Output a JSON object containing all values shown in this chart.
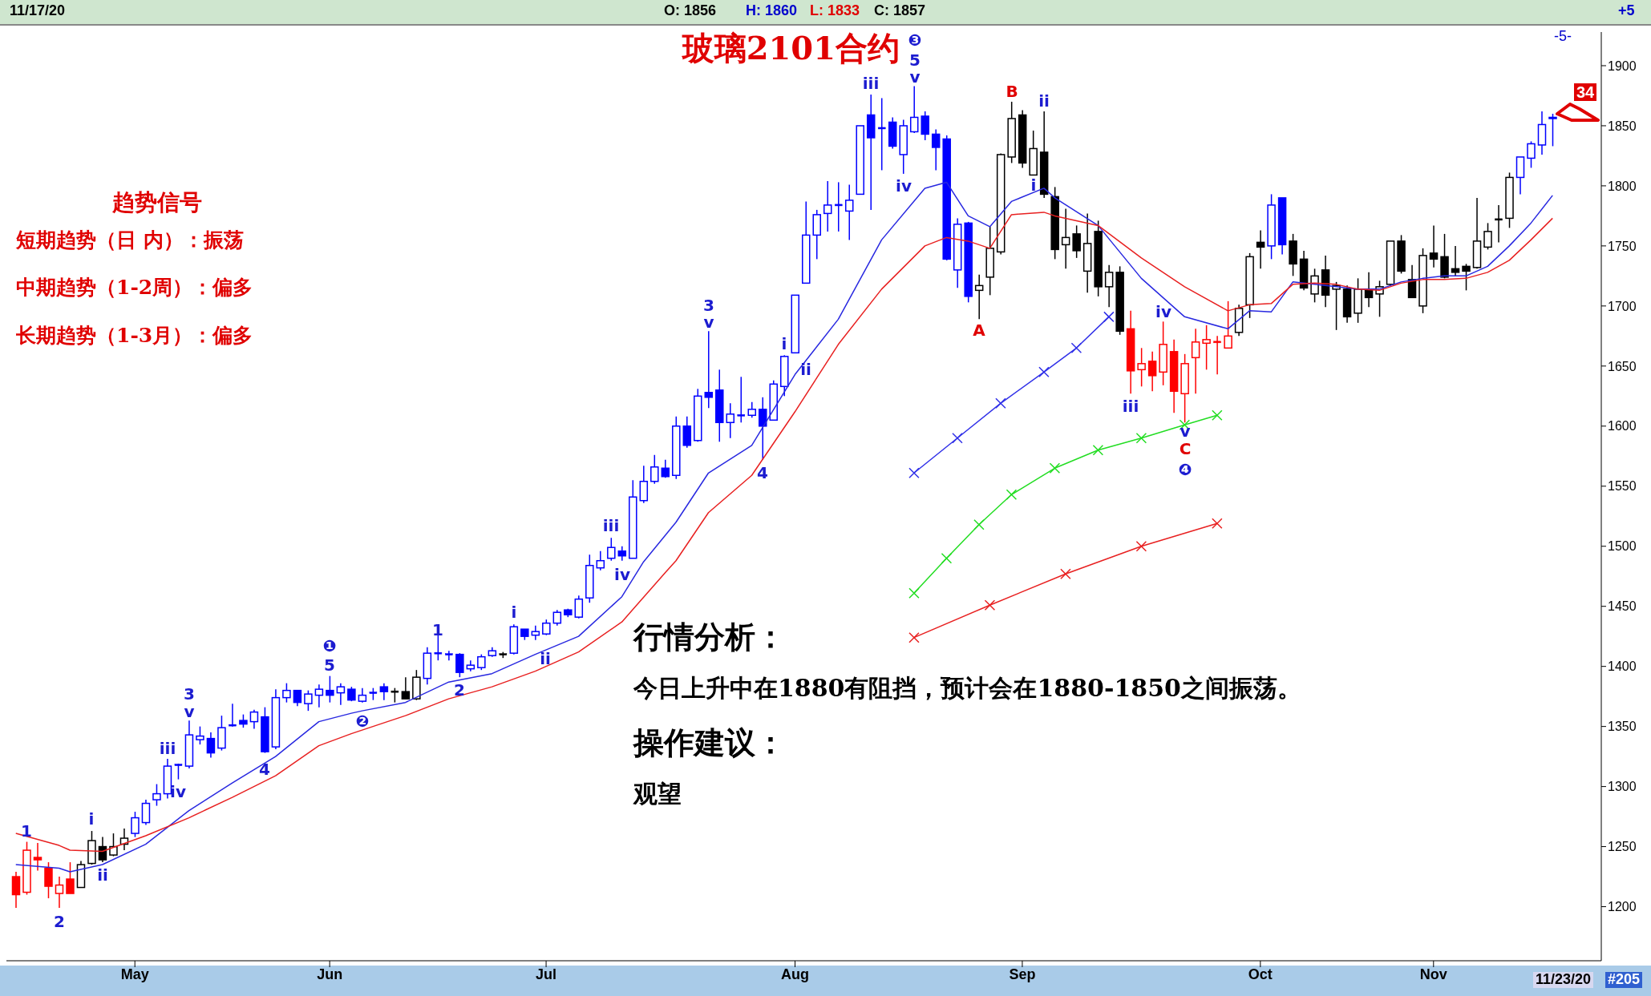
{
  "chart_data": {
    "type": "candlestick",
    "title": "玻璃2101合约",
    "categories": [
      null,
      null,
      null,
      null,
      null,
      null,
      null,
      null,
      null,
      null,
      null,
      "May",
      null,
      null,
      null,
      null,
      null,
      null,
      null,
      null,
      null,
      null,
      null,
      null,
      null,
      null,
      null,
      null,
      null,
      "Jun",
      null,
      null,
      null,
      null,
      null,
      null,
      null,
      null,
      null,
      null,
      null,
      null,
      null,
      null,
      null,
      null,
      null,
      null,
      null,
      "Jul",
      null,
      null,
      null,
      null,
      null,
      null,
      null,
      null,
      null,
      null,
      null,
      null,
      null,
      null,
      null,
      null,
      null,
      null,
      null,
      null,
      null,
      null,
      "Aug",
      null,
      null,
      null,
      null,
      null,
      null,
      null,
      null,
      null,
      null,
      null,
      null,
      null,
      null,
      null,
      null,
      null,
      null,
      null,
      null,
      "Sep",
      null,
      null,
      null,
      null,
      null,
      null,
      null,
      null,
      null,
      null,
      null,
      null,
      null,
      null,
      null,
      null,
      null,
      null,
      null,
      null,
      null,
      "Oct",
      null,
      null,
      null,
      null,
      null,
      null,
      null,
      null,
      null,
      null,
      null,
      null,
      null,
      null,
      null,
      "Nov",
      null,
      null,
      null,
      null,
      null,
      null,
      null,
      null,
      null,
      null,
      null
    ],
    "ohlc": [
      [
        1225,
        1229,
        1199,
        1210
      ],
      [
        1212,
        1254,
        1210,
        1247
      ],
      [
        1241,
        1253,
        1230,
        1239
      ],
      [
        1232,
        1237,
        1207,
        1217
      ],
      [
        1211,
        1225,
        1199,
        1218
      ],
      [
        1223,
        1237,
        1211,
        1211
      ],
      [
        1216,
        1238,
        1216,
        1235
      ],
      [
        1236,
        1263,
        1235,
        1255
      ],
      [
        1250,
        1258,
        1237,
        1239
      ],
      [
        1243,
        1261,
        1242,
        1250
      ],
      [
        1252,
        1265,
        1247,
        1257
      ],
      [
        1261,
        1279,
        1258,
        1274
      ],
      [
        1270,
        1289,
        1268,
        1286
      ],
      [
        1289,
        1302,
        1284,
        1294
      ],
      [
        1294,
        1323,
        1290,
        1317
      ],
      [
        1318,
        1319,
        1306,
        1318
      ],
      [
        1317,
        1355,
        1315,
        1343
      ],
      [
        1339,
        1350,
        1335,
        1342
      ],
      [
        1340,
        1345,
        1324,
        1328
      ],
      [
        1332,
        1359,
        1330,
        1349
      ],
      [
        1351,
        1369,
        1350,
        1351
      ],
      [
        1355,
        1360,
        1349,
        1352
      ],
      [
        1354,
        1364,
        1348,
        1362
      ],
      [
        1358,
        1366,
        1328,
        1329
      ],
      [
        1333,
        1381,
        1331,
        1374
      ],
      [
        1374,
        1386,
        1370,
        1380
      ],
      [
        1380,
        1380,
        1367,
        1370
      ],
      [
        1369,
        1380,
        1363,
        1377
      ],
      [
        1376,
        1385,
        1366,
        1381
      ],
      [
        1380,
        1392,
        1370,
        1376
      ],
      [
        1378,
        1386,
        1368,
        1383
      ],
      [
        1381,
        1383,
        1371,
        1372
      ],
      [
        1371,
        1382,
        1370,
        1376
      ],
      [
        1378,
        1382,
        1372,
        1378
      ],
      [
        1383,
        1386,
        1372,
        1379
      ],
      [
        1379,
        1382,
        1370,
        1379
      ],
      [
        1379,
        1391,
        1373,
        1373
      ],
      [
        1373,
        1397,
        1372,
        1391
      ],
      [
        1390,
        1416,
        1385,
        1411
      ],
      [
        1411,
        1427,
        1405,
        1411
      ],
      [
        1410,
        1413,
        1405,
        1410
      ],
      [
        1410,
        1411,
        1391,
        1395
      ],
      [
        1398,
        1405,
        1396,
        1401
      ],
      [
        1399,
        1410,
        1397,
        1408
      ],
      [
        1409,
        1416,
        1408,
        1413
      ],
      [
        1410,
        1412,
        1407,
        1410
      ],
      [
        1411,
        1435,
        1410,
        1433
      ],
      [
        1431,
        1431,
        1422,
        1425
      ],
      [
        1426,
        1434,
        1422,
        1429
      ],
      [
        1427,
        1439,
        1426,
        1436
      ],
      [
        1436,
        1447,
        1434,
        1445
      ],
      [
        1447,
        1448,
        1441,
        1443
      ],
      [
        1441,
        1459,
        1440,
        1456
      ],
      [
        1457,
        1493,
        1453,
        1484
      ],
      [
        1482,
        1496,
        1480,
        1488
      ],
      [
        1490,
        1507,
        1488,
        1499
      ],
      [
        1496,
        1500,
        1488,
        1492
      ],
      [
        1490,
        1555,
        1490,
        1541
      ],
      [
        1538,
        1567,
        1536,
        1554
      ],
      [
        1554,
        1576,
        1552,
        1566
      ],
      [
        1565,
        1572,
        1557,
        1558
      ],
      [
        1559,
        1608,
        1556,
        1600
      ],
      [
        1600,
        1608,
        1582,
        1584
      ],
      [
        1588,
        1631,
        1587,
        1625
      ],
      [
        1628,
        1679,
        1615,
        1624
      ],
      [
        1630,
        1647,
        1587,
        1603
      ],
      [
        1603,
        1619,
        1590,
        1610
      ],
      [
        1609,
        1641,
        1603,
        1609
      ],
      [
        1609,
        1620,
        1607,
        1614
      ],
      [
        1614,
        1624,
        1572,
        1600
      ],
      [
        1605,
        1638,
        1605,
        1635
      ],
      [
        1633,
        1659,
        1625,
        1658
      ],
      [
        1661,
        1709,
        1661,
        1709
      ],
      [
        1719,
        1787,
        1719,
        1759
      ],
      [
        1759,
        1780,
        1739,
        1776
      ],
      [
        1777,
        1804,
        1762,
        1784
      ],
      [
        1784,
        1803,
        1762,
        1784
      ],
      [
        1779,
        1801,
        1755,
        1788
      ],
      [
        1793,
        1850,
        1793,
        1850
      ],
      [
        1859,
        1876,
        1780,
        1840
      ],
      [
        1848,
        1873,
        1813,
        1848
      ],
      [
        1853,
        1857,
        1831,
        1833
      ],
      [
        1826,
        1855,
        1810,
        1850
      ],
      [
        1845,
        1883,
        1844,
        1857
      ],
      [
        1858,
        1862,
        1838,
        1843
      ],
      [
        1843,
        1847,
        1813,
        1832
      ],
      [
        1839,
        1842,
        1738,
        1739
      ],
      [
        1730,
        1773,
        1715,
        1768
      ],
      [
        1769,
        1770,
        1703,
        1708
      ],
      [
        1713,
        1726,
        1689,
        1717
      ],
      [
        1724,
        1766,
        1709,
        1748
      ],
      [
        1745,
        1827,
        1743,
        1826
      ],
      [
        1824,
        1870,
        1819,
        1856
      ],
      [
        1859,
        1863,
        1815,
        1819
      ],
      [
        1809,
        1846,
        1809,
        1831
      ],
      [
        1828,
        1862,
        1790,
        1793
      ],
      [
        1791,
        1799,
        1739,
        1747
      ],
      [
        1751,
        1781,
        1731,
        1757
      ],
      [
        1760,
        1767,
        1740,
        1746
      ],
      [
        1729,
        1777,
        1711,
        1752
      ],
      [
        1762,
        1771,
        1708,
        1716
      ],
      [
        1716,
        1734,
        1699,
        1728
      ],
      [
        1728,
        1733,
        1676,
        1679
      ],
      [
        1681,
        1696,
        1627,
        1646
      ],
      [
        1647,
        1665,
        1633,
        1652
      ],
      [
        1654,
        1662,
        1629,
        1642
      ],
      [
        1645,
        1687,
        1634,
        1668
      ],
      [
        1662,
        1672,
        1611,
        1629
      ],
      [
        1627,
        1660,
        1603,
        1652
      ],
      [
        1657,
        1681,
        1627,
        1670
      ],
      [
        1669,
        1684,
        1647,
        1672
      ],
      [
        1670,
        1675,
        1643,
        1670
      ],
      [
        1665,
        1704,
        1665,
        1675
      ],
      [
        1678,
        1701,
        1675,
        1698
      ],
      [
        1701,
        1744,
        1690,
        1741
      ],
      [
        1753,
        1763,
        1731,
        1749
      ],
      [
        1750,
        1793,
        1739,
        1784
      ],
      [
        1790,
        1790,
        1743,
        1751
      ],
      [
        1754,
        1760,
        1725,
        1735
      ],
      [
        1739,
        1746,
        1713,
        1715
      ],
      [
        1710,
        1731,
        1703,
        1725
      ],
      [
        1730,
        1742,
        1699,
        1709
      ],
      [
        1714,
        1720,
        1680,
        1717
      ],
      [
        1714,
        1717,
        1686,
        1691
      ],
      [
        1694,
        1723,
        1686,
        1714
      ],
      [
        1713,
        1728,
        1699,
        1707
      ],
      [
        1710,
        1721,
        1691,
        1716
      ],
      [
        1718,
        1754,
        1717,
        1754
      ],
      [
        1754,
        1759,
        1727,
        1729
      ],
      [
        1722,
        1734,
        1707,
        1707
      ],
      [
        1700,
        1748,
        1694,
        1742
      ],
      [
        1744,
        1767,
        1732,
        1739
      ],
      [
        1741,
        1760,
        1723,
        1724
      ],
      [
        1731,
        1750,
        1725,
        1728
      ],
      [
        1733,
        1735,
        1713,
        1729
      ],
      [
        1732,
        1790,
        1731,
        1754
      ],
      [
        1749,
        1769,
        1747,
        1762
      ],
      [
        1772,
        1784,
        1753,
        1772
      ],
      [
        1773,
        1811,
        1765,
        1807
      ],
      [
        1807,
        1824,
        1793,
        1824
      ],
      [
        1823,
        1837,
        1815,
        1835
      ],
      [
        1834,
        1862,
        1826,
        1851
      ],
      [
        1856,
        1860,
        1833,
        1857
      ]
    ],
    "colors": [
      "#ff0000",
      "#ff0000",
      "#ff0000",
      "#ff0000",
      "#ff0000",
      "#ff0000",
      "#000000",
      "#000000",
      "#000000",
      "#000000",
      "#000000",
      "#0000ff",
      "#0000ff",
      "#0000ff",
      "#0000ff",
      "#0000ff",
      "#0000ff",
      "#0000ff",
      "#0000ff",
      "#0000ff",
      "#0000ff",
      "#0000ff",
      "#0000ff",
      "#0000ff",
      "#0000ff",
      "#0000ff",
      "#0000ff",
      "#0000ff",
      "#0000ff",
      "#0000ff",
      "#0000ff",
      "#0000ff",
      "#0000ff",
      "#0000ff",
      "#0000ff",
      "#000000",
      "#000000",
      "#000000",
      "#0000ff",
      "#0000ff",
      "#0000ff",
      "#0000ff",
      "#0000ff",
      "#0000ff",
      "#0000ff",
      "#000000",
      "#0000ff",
      "#0000ff",
      "#0000ff",
      "#0000ff",
      "#0000ff",
      "#0000ff",
      "#0000ff",
      "#0000ff",
      "#0000ff",
      "#0000ff",
      "#0000ff",
      "#0000ff",
      "#0000ff",
      "#0000ff",
      "#0000ff",
      "#0000ff",
      "#0000ff",
      "#0000ff",
      "#0000ff",
      "#0000ff",
      "#0000ff",
      "#0000ff",
      "#0000ff",
      "#0000ff",
      "#0000ff",
      "#0000ff",
      "#0000ff",
      "#0000ff",
      "#0000ff",
      "#0000ff",
      "#0000ff",
      "#0000ff",
      "#0000ff",
      "#0000ff",
      "#0000ff",
      "#0000ff",
      "#0000ff",
      "#0000ff",
      "#0000ff",
      "#0000ff",
      "#0000ff",
      "#0000ff",
      "#0000ff",
      "#000000",
      "#000000",
      "#000000",
      "#000000",
      "#000000",
      "#000000",
      "#000000",
      "#000000",
      "#000000",
      "#000000",
      "#000000",
      "#000000",
      "#000000",
      "#000000",
      "#ff0000",
      "#ff0000",
      "#ff0000",
      "#ff0000",
      "#ff0000",
      "#ff0000",
      "#ff0000",
      "#ff0000",
      "#ff0000",
      "#ff0000",
      "#000000",
      "#000000",
      "#000000",
      "#0000ff",
      "#0000ff",
      "#000000",
      "#000000",
      "#000000",
      "#000000",
      "#000000",
      "#000000",
      "#000000",
      "#000000",
      "#000000",
      "#000000",
      "#000000",
      "#000000",
      "#000000",
      "#000000",
      "#000000",
      "#000000",
      "#000000",
      "#000000",
      "#000000",
      "#000000",
      "#000000",
      "#0000ff",
      "#0000ff",
      "#0000ff",
      "#0000ff"
    ],
    "series": [
      {
        "type": "line",
        "color": "#2828e0",
        "marker": "none",
        "values": [
          1235,
          null,
          null,
          null,
          1232,
          1229,
          null,
          null,
          1235,
          null,
          null,
          null,
          1252,
          null,
          null,
          null,
          1280,
          null,
          null,
          null,
          1303,
          null,
          null,
          null,
          1325,
          null,
          null,
          null,
          1354,
          null,
          null,
          1361,
          1363,
          null,
          null,
          null,
          1370,
          null,
          null,
          null,
          1387,
          null,
          null,
          null,
          1394,
          null,
          null,
          null,
          1410,
          null,
          null,
          null,
          1425,
          null,
          null,
          null,
          1458,
          null,
          1487,
          null,
          1509,
          1520,
          null,
          null,
          1561,
          null,
          null,
          null,
          1584,
          null,
          null,
          null,
          1643,
          null,
          null,
          null,
          1689,
          null,
          null,
          null,
          1755,
          null,
          null,
          null,
          1798,
          null,
          1803,
          null,
          1775,
          null,
          1766,
          null,
          1787,
          null,
          null,
          1798,
          1790,
          null,
          null,
          null,
          1767,
          null,
          null,
          null,
          1723,
          null,
          null,
          null,
          1691,
          null,
          null,
          null,
          1681,
          null,
          1696,
          null,
          1695,
          null,
          1720,
          null,
          1718,
          null,
          1716,
          null,
          1714,
          null,
          1714,
          null,
          1720,
          null,
          1723,
          null,
          1725,
          null,
          1725,
          null,
          1733,
          null,
          1750,
          null,
          1769,
          null,
          1792
        ]
      },
      {
        "type": "line",
        "color": "#e82020",
        "marker": "none",
        "values": [
          1261,
          null,
          null,
          null,
          1251,
          1247,
          null,
          null,
          1246,
          null,
          null,
          null,
          1259,
          null,
          null,
          null,
          1274,
          null,
          null,
          null,
          1291,
          null,
          null,
          null,
          1309,
          null,
          null,
          null,
          1334,
          null,
          null,
          1344,
          1347,
          null,
          null,
          null,
          1359,
          null,
          null,
          null,
          1373,
          null,
          null,
          null,
          1383,
          null,
          null,
          null,
          1396,
          null,
          null,
          null,
          1412,
          null,
          null,
          null,
          1437,
          null,
          null,
          null,
          1478,
          1488,
          null,
          null,
          1528,
          null,
          null,
          null,
          1559,
          null,
          null,
          null,
          1612,
          null,
          null,
          null,
          1668,
          null,
          null,
          null,
          1714,
          null,
          null,
          null,
          1750,
          null,
          1757,
          null,
          1754,
          null,
          1748,
          null,
          1776,
          null,
          null,
          1778,
          1775,
          null,
          null,
          null,
          1767,
          null,
          null,
          null,
          1740,
          null,
          null,
          null,
          1716,
          null,
          null,
          null,
          1696,
          null,
          1701,
          null,
          1702,
          null,
          1718,
          null,
          1719,
          null,
          1718,
          null,
          1714,
          null,
          1713,
          null,
          1719,
          null,
          1722,
          null,
          1722,
          null,
          1723,
          null,
          1728,
          null,
          1738,
          null,
          1755,
          null,
          1773
        ]
      },
      {
        "type": "line",
        "color": "#3030e8",
        "marker": "cross",
        "values": [
          null,
          null,
          null,
          null,
          null,
          null,
          null,
          null,
          null,
          null,
          null,
          null,
          null,
          null,
          null,
          null,
          null,
          null,
          null,
          null,
          null,
          null,
          null,
          null,
          null,
          null,
          null,
          null,
          null,
          null,
          null,
          null,
          null,
          null,
          null,
          null,
          null,
          null,
          null,
          null,
          null,
          null,
          null,
          null,
          null,
          null,
          null,
          null,
          null,
          null,
          null,
          null,
          null,
          null,
          null,
          null,
          null,
          null,
          null,
          null,
          null,
          null,
          null,
          null,
          null,
          null,
          null,
          null,
          null,
          null,
          null,
          null,
          null,
          null,
          null,
          null,
          null,
          null,
          null,
          null,
          null,
          null,
          null,
          1561,
          null,
          null,
          null,
          1590,
          null,
          null,
          null,
          1619,
          null,
          null,
          null,
          1645,
          null,
          null,
          1665,
          null,
          null,
          1691,
          null,
          null,
          null,
          null,
          null,
          null,
          null,
          null,
          null,
          null,
          null,
          null,
          null,
          null,
          null,
          null,
          null,
          null,
          null,
          null,
          null,
          null,
          null,
          null,
          null,
          null,
          null,
          null,
          null,
          null,
          null,
          null,
          null,
          null,
          null,
          null,
          null,
          null,
          null,
          null,
          null
        ]
      },
      {
        "type": "line",
        "color": "#22dd22",
        "marker": "cross",
        "values": [
          null,
          null,
          null,
          null,
          null,
          null,
          null,
          null,
          null,
          null,
          null,
          null,
          null,
          null,
          null,
          null,
          null,
          null,
          null,
          null,
          null,
          null,
          null,
          null,
          null,
          null,
          null,
          null,
          null,
          null,
          null,
          null,
          null,
          null,
          null,
          null,
          null,
          null,
          null,
          null,
          null,
          null,
          null,
          null,
          null,
          null,
          null,
          null,
          null,
          null,
          null,
          null,
          null,
          null,
          null,
          null,
          null,
          null,
          null,
          null,
          null,
          null,
          null,
          null,
          null,
          null,
          null,
          null,
          null,
          null,
          null,
          null,
          null,
          null,
          null,
          null,
          null,
          null,
          null,
          null,
          null,
          null,
          null,
          1461,
          null,
          null,
          1490,
          null,
          null,
          1518,
          null,
          null,
          1543,
          null,
          null,
          null,
          1565,
          null,
          null,
          null,
          1580,
          null,
          null,
          null,
          1590,
          null,
          null,
          null,
          1601,
          null,
          null,
          1609,
          null,
          null,
          null,
          null,
          null,
          null,
          null,
          null,
          null,
          null,
          null,
          null,
          null,
          null,
          null,
          null,
          null,
          null,
          null,
          null,
          null,
          null,
          null,
          null,
          null,
          null,
          null,
          null,
          null,
          null,
          null
        ]
      },
      {
        "type": "line",
        "color": "#e82020",
        "marker": "cross",
        "values": [
          null,
          null,
          null,
          null,
          null,
          null,
          null,
          null,
          null,
          null,
          null,
          null,
          null,
          null,
          null,
          null,
          null,
          null,
          null,
          null,
          null,
          null,
          null,
          null,
          null,
          null,
          null,
          null,
          null,
          null,
          null,
          null,
          null,
          null,
          null,
          null,
          null,
          null,
          null,
          null,
          null,
          null,
          null,
          null,
          null,
          null,
          null,
          null,
          null,
          null,
          null,
          null,
          null,
          null,
          null,
          null,
          null,
          null,
          null,
          null,
          null,
          null,
          null,
          null,
          null,
          null,
          null,
          null,
          null,
          null,
          null,
          null,
          null,
          null,
          null,
          null,
          null,
          null,
          null,
          null,
          null,
          null,
          null,
          1424,
          null,
          null,
          null,
          null,
          null,
          null,
          1451,
          null,
          null,
          null,
          null,
          null,
          null,
          1477,
          null,
          null,
          null,
          null,
          null,
          null,
          1500,
          null,
          null,
          null,
          null,
          null,
          null,
          1519,
          null,
          null,
          null,
          null,
          null,
          null,
          null,
          null,
          null,
          null,
          null,
          null,
          null,
          null,
          null,
          null,
          null,
          null,
          null,
          null,
          null,
          null,
          null,
          null,
          null,
          null,
          null,
          null,
          null,
          null,
          null
        ]
      }
    ],
    "ylim": [
      1155,
      1928
    ],
    "yticks": [
      1200,
      1250,
      1300,
      1350,
      1400,
      1450,
      1500,
      1550,
      1600,
      1650,
      1700,
      1750,
      1800,
      1850,
      1900
    ],
    "annotations": [
      "趋势信号",
      "短期趋势（日 内）：振荡",
      "中期趋势（1-2周）：偏多",
      "长期趋势（1-3月）：偏多",
      "行情分析：",
      "今日上升中在1880有阻挡，预计会在1880-1850之间振荡。",
      "操作建议：",
      "观望",
      "11/17/20",
      "O: 1856",
      "H: 1860",
      "L: 1833",
      "C: 1857",
      "+5",
      "11/23/20",
      "#205",
      "-5-",
      "34",
      "1",
      "2",
      "i",
      "ii",
      "iii",
      "iv",
      "3",
      "v",
      "4",
      "❶",
      "5",
      "❷",
      "1",
      "2",
      "i",
      "ii",
      "iii",
      "iv",
      "3",
      "v",
      "4",
      "i",
      "ii",
      "iii",
      "iv",
      "❸",
      "5",
      "v",
      "A",
      "B",
      "i",
      "ii",
      "iii",
      "iv",
      "v",
      "C",
      "❹"
    ]
  }
}
